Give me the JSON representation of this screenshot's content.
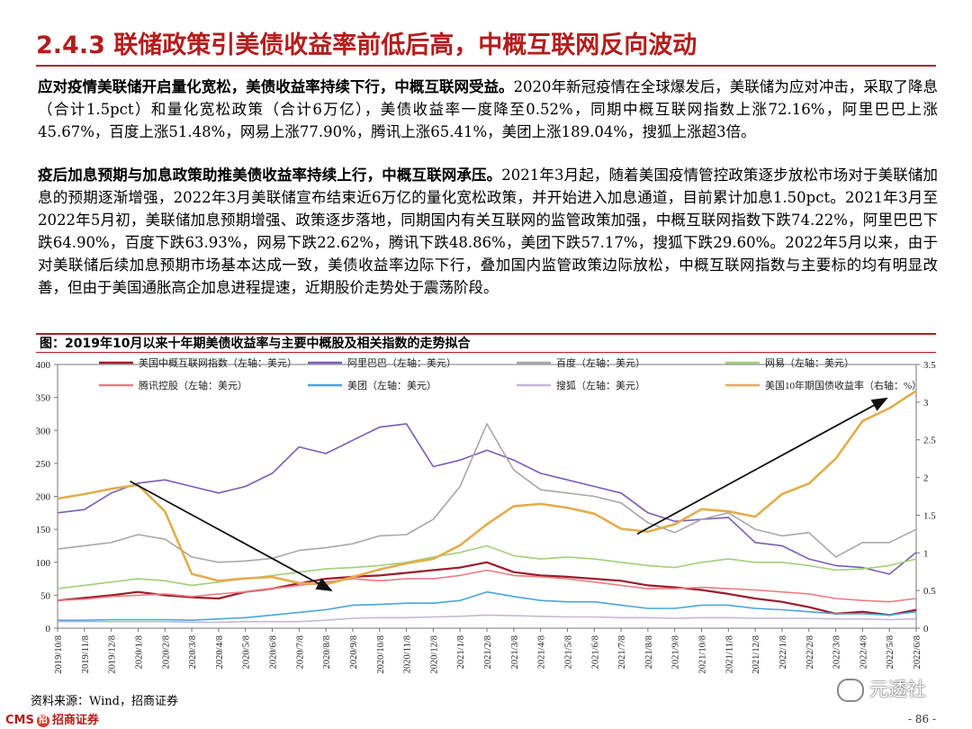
{
  "section_title": "2.4.3 联储政策引美债收益率前低后高，中概互联网反向波动",
  "paragraph1": {
    "lead": "应对疫情美联储开启量化宽松，美债收益率持续下行，中概互联网受益。",
    "body": "2020年新冠疫情在全球爆发后，美联储为应对冲击，采取了降息（合计1.5pct）和量化宽松政策（合计6万亿），美债收益率一度降至0.52%，同期中概互联网指数上涨72.16%，阿里巴巴上涨45.67%，百度上涨51.48%，网易上涨77.90%，腾讯上涨65.41%，美团上涨189.04%，搜狐上涨超3倍。"
  },
  "paragraph2": {
    "lead": "疫后加息预期与加息政策助推美债收益率持续上行，中概互联网承压。",
    "body": "2021年3月起，随着美国疫情管控政策逐步放松市场对于美联储加息的预期逐渐增强，2022年3月美联储宣布结束近6万亿的量化宽松政策，并开始进入加息通道，目前累计加息1.50pct。2021年3月至2022年5月初，美联储加息预期增强、政策逐步落地，同期国内有关互联网的监管政策加强，中概互联网指数下跌74.22%，阿里巴巴下跌64.90%，百度下跌63.93%，网易下跌22.62%，腾讯下跌48.86%，美团下跌57.17%，搜狐下跌29.60%。2022年5月以来，由于对美联储后续加息预期市场基本达成一致，美债收益率边际下行，叠加国内监管政策边际放松，中概互联网指数与主要标的均有明显改善，但由于美国通胀高企加息进程提速，近期股价走势处于震荡阶段。"
  },
  "figure_caption": "图：2019年10月以来十年期美债收益率与主要中概股及相关指数的走势拟合",
  "source_note": "资料来源：Wind，招商证券",
  "footer": {
    "brand": "CMS",
    "brand_cn": "招商证券",
    "page": "- 86 -"
  },
  "watermark": "元透社",
  "chart_data": {
    "type": "line",
    "x_ticks": [
      "2019/10/8",
      "2019/11/8",
      "2019/12/8",
      "2020/1/8",
      "2020/2/8",
      "2020/3/8",
      "2020/4/8",
      "2020/5/8",
      "2020/6/8",
      "2020/7/8",
      "2020/8/8",
      "2020/9/8",
      "2020/10/8",
      "2020/11/8",
      "2020/12/8",
      "2021/1/8",
      "2021/2/8",
      "2021/3/8",
      "2021/4/8",
      "2021/5/8",
      "2021/6/8",
      "2021/7/8",
      "2021/8/8",
      "2021/9/8",
      "2021/10/8",
      "2021/11/8",
      "2021/12/8",
      "2022/1/8",
      "2022/2/8",
      "2022/3/8",
      "2022/4/8",
      "2022/5/8",
      "2022/6/8"
    ],
    "y_left": {
      "min": 0,
      "max": 400,
      "ticks": [
        0,
        50,
        100,
        150,
        200,
        250,
        300,
        350,
        400
      ]
    },
    "y_right": {
      "min": 0,
      "max": 3.5,
      "ticks": [
        "0",
        "0.5",
        "1",
        "1.5",
        "2",
        "2.5",
        "3",
        "3.5"
      ]
    },
    "series": [
      {
        "name": "美国中概互联网指数（左轴：美元）",
        "color": "#9b1c2c",
        "axis": "left",
        "width": 2.2,
        "values": [
          42,
          46,
          50,
          55,
          50,
          47,
          45,
          55,
          60,
          68,
          75,
          78,
          80,
          84,
          88,
          92,
          100,
          85,
          80,
          78,
          75,
          72,
          65,
          62,
          58,
          52,
          45,
          40,
          32,
          22,
          25,
          20,
          28
        ]
      },
      {
        "name": "阿里巴巴（左轴：美元）",
        "color": "#7b5cb8",
        "axis": "left",
        "width": 1.6,
        "values": [
          175,
          180,
          205,
          220,
          225,
          215,
          205,
          215,
          235,
          275,
          265,
          285,
          305,
          310,
          245,
          255,
          270,
          255,
          235,
          225,
          215,
          205,
          175,
          162,
          165,
          168,
          130,
          125,
          105,
          95,
          92,
          82,
          115
        ]
      },
      {
        "name": "百度（左轴：美元）",
        "color": "#a8a8a8",
        "axis": "left",
        "width": 1.6,
        "values": [
          120,
          125,
          130,
          142,
          135,
          108,
          100,
          102,
          106,
          118,
          122,
          128,
          140,
          142,
          165,
          215,
          310,
          240,
          210,
          205,
          200,
          190,
          160,
          145,
          165,
          175,
          150,
          140,
          145,
          108,
          130,
          130,
          150
        ]
      },
      {
        "name": "网易（左轴：美元）",
        "color": "#9fd07b",
        "axis": "left",
        "width": 1.6,
        "values": [
          60,
          65,
          70,
          75,
          72,
          65,
          70,
          75,
          80,
          85,
          90,
          92,
          95,
          100,
          108,
          115,
          125,
          110,
          105,
          108,
          105,
          100,
          95,
          92,
          100,
          105,
          100,
          100,
          95,
          88,
          90,
          95,
          105
        ]
      },
      {
        "name": "腾讯控股（左轴：美元）",
        "color": "#f07a80",
        "axis": "left",
        "width": 1.6,
        "values": [
          42,
          44,
          48,
          50,
          52,
          48,
          52,
          55,
          60,
          65,
          70,
          75,
          72,
          75,
          75,
          80,
          88,
          80,
          78,
          75,
          70,
          65,
          60,
          60,
          62,
          60,
          58,
          55,
          52,
          45,
          42,
          40,
          45
        ]
      },
      {
        "name": "美团（左轴：美元）",
        "color": "#4aa4dc",
        "axis": "left",
        "width": 1.6,
        "values": [
          12,
          12,
          13,
          13,
          13,
          12,
          14,
          16,
          20,
          24,
          28,
          35,
          36,
          38,
          38,
          42,
          55,
          48,
          42,
          40,
          40,
          35,
          30,
          30,
          35,
          35,
          30,
          28,
          25,
          22,
          22,
          20,
          25
        ]
      },
      {
        "name": "搜狐（左轴：美元）",
        "color": "#c4b6d8",
        "axis": "left",
        "width": 1.6,
        "values": [
          10,
          10,
          10,
          10,
          10,
          9,
          9,
          10,
          10,
          10,
          12,
          15,
          16,
          16,
          17,
          18,
          20,
          19,
          18,
          17,
          17,
          16,
          16,
          15,
          16,
          16,
          15,
          15,
          15,
          14,
          14,
          13,
          14
        ]
      },
      {
        "name": "美国10年期国债收益率（右轴：%）",
        "color": "#e3ad4b",
        "axis": "right",
        "width": 2.6,
        "values": [
          1.72,
          1.78,
          1.85,
          1.9,
          1.55,
          0.72,
          0.63,
          0.66,
          0.68,
          0.6,
          0.58,
          0.68,
          0.78,
          0.86,
          0.92,
          1.1,
          1.38,
          1.62,
          1.65,
          1.6,
          1.52,
          1.32,
          1.28,
          1.38,
          1.58,
          1.55,
          1.48,
          1.78,
          1.92,
          2.25,
          2.75,
          2.92,
          3.15
        ]
      }
    ],
    "annotations": [
      {
        "type": "arrow",
        "from": {
          "x": 2.7,
          "y_right": 1.95
        },
        "to": {
          "x": 10.2,
          "y_right": 0.5
        }
      },
      {
        "type": "arrow",
        "from": {
          "x": 21.6,
          "y_right": 1.25
        },
        "to": {
          "x": 30.9,
          "y_right": 3.05
        }
      }
    ]
  }
}
